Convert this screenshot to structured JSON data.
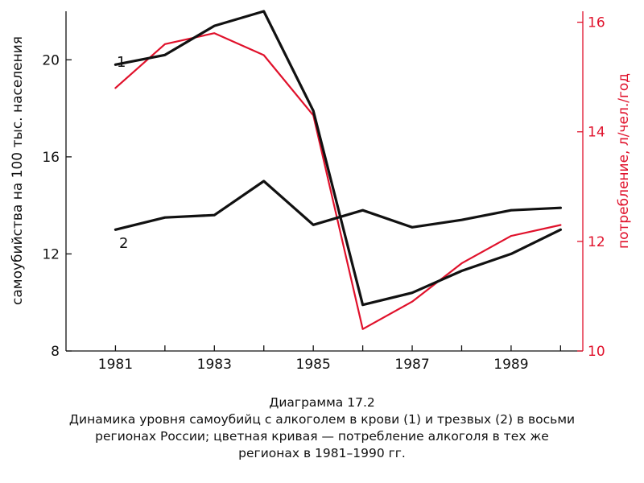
{
  "chart_data": {
    "type": "line",
    "x": [
      1981,
      1982,
      1983,
      1984,
      1985,
      1986,
      1987,
      1988,
      1989,
      1990
    ],
    "xlim": [
      1980.0,
      1990.45
    ],
    "x_tick_labels": [
      "1981",
      "1983",
      "1985",
      "1987",
      "1989"
    ],
    "y_left": {
      "label": "самоубийства на 100 тыс. населения",
      "range": [
        8,
        22
      ],
      "ticks": [
        8,
        12,
        16,
        20
      ],
      "tick_labels": [
        "8",
        "12",
        "16",
        "20"
      ]
    },
    "y_right": {
      "label": "потребление, л/чел./год",
      "range": [
        10,
        16.2
      ],
      "ticks": [
        10,
        12,
        14,
        16
      ],
      "tick_labels": [
        "10",
        "12",
        "14",
        "16"
      ]
    },
    "series": [
      {
        "name": "1",
        "axis": "left",
        "color": "#111111",
        "values": [
          19.8,
          20.2,
          21.4,
          22.0,
          17.9,
          9.9,
          10.4,
          11.3,
          12.0,
          13.0
        ]
      },
      {
        "name": "2",
        "axis": "left",
        "color": "#111111",
        "values": [
          13.0,
          13.5,
          13.6,
          15.0,
          13.2,
          13.8,
          13.1,
          13.4,
          13.8,
          13.9
        ]
      },
      {
        "name": "",
        "axis": "right",
        "color": "#e0112b",
        "values": [
          14.8,
          15.6,
          15.8,
          15.4,
          14.3,
          10.4,
          10.9,
          11.6,
          12.1,
          12.3
        ]
      }
    ],
    "grid": false
  },
  "caption": {
    "line1": "Диаграмма 17.2",
    "line2": "Динамика уровня самоубийц с алкоголем в крови (1) и трезвых (2) в восьми",
    "line3": "регионах России; цветная кривая — потребление алкоголя в тех же",
    "line4": "регионах в 1981–1990 гг."
  }
}
